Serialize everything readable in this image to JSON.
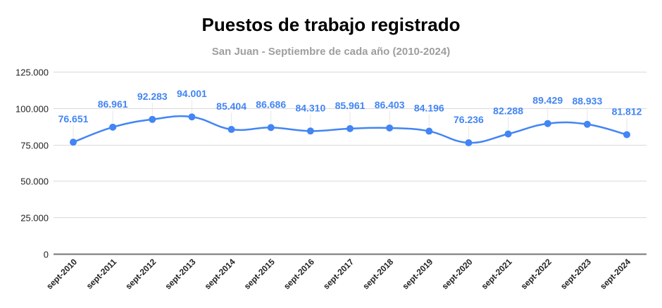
{
  "chart_data": {
    "type": "line",
    "title": "Puestos de trabajo registrado",
    "subtitle": "San Juan - Septiembre de cada año (2010-2024)",
    "xlabel": "",
    "ylabel": "",
    "categories": [
      "sept-2010",
      "sept-2011",
      "sept-2012",
      "sept-2013",
      "sept-2014",
      "sept-2015",
      "sept-2016",
      "sept-2017",
      "sept-2018",
      "sept-2019",
      "sept-2020",
      "sept-2021",
      "sept-2022",
      "sept-2023",
      "sept-2024"
    ],
    "series": [
      {
        "name": "Puestos de trabajo registrado",
        "values": [
          76651,
          86961,
          92283,
          94001,
          85404,
          86686,
          84310,
          85961,
          86403,
          84196,
          76236,
          82288,
          89429,
          88933,
          81812
        ],
        "labels": [
          "76.651",
          "86.961",
          "92.283",
          "94.001",
          "85.404",
          "86.686",
          "84.310",
          "85.961",
          "86.403",
          "84.196",
          "76.236",
          "82.288",
          "89.429",
          "88.933",
          "81.812"
        ],
        "color": "#4285f4"
      }
    ],
    "ylim": [
      0,
      125000
    ],
    "yticks": [
      0,
      25000,
      50000,
      75000,
      100000,
      125000
    ],
    "ytick_labels": [
      "0",
      "25.000",
      "50.000",
      "75.000",
      "100.000",
      "125.000"
    ],
    "grid": true,
    "legend": "none",
    "colors": {
      "line": "#4285f4",
      "grid": "#d9d9d9",
      "axis": "#757575",
      "title": "#000000",
      "subtitle": "#9e9e9e"
    }
  }
}
